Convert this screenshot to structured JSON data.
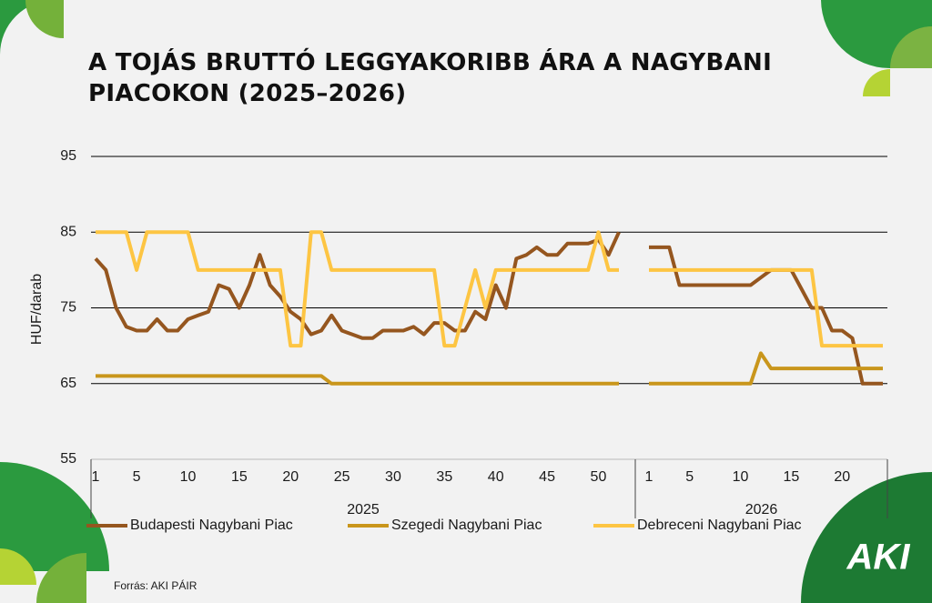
{
  "chart_data": {
    "type": "line",
    "title": "A TOJÁS BRUTTÓ LEGGYAKORIBB ÁRA A NAGYBANI PIACOKON (2025–2026)",
    "y_label": "HUF/darab",
    "groups": [
      {
        "label": "2025",
        "categories": [
          1,
          null,
          null,
          null,
          5,
          null,
          null,
          null,
          null,
          10,
          null,
          null,
          null,
          null,
          15,
          null,
          null,
          null,
          null,
          20,
          null,
          null,
          null,
          null,
          25,
          null,
          null,
          null,
          null,
          30,
          null,
          null,
          null,
          null,
          35,
          null,
          null,
          null,
          null,
          40,
          null,
          null,
          null,
          null,
          45,
          null,
          null,
          null,
          null,
          50,
          null,
          null
        ]
      },
      {
        "label": "2026",
        "categories": [
          1,
          null,
          null,
          null,
          5,
          null,
          null,
          null,
          null,
          10,
          null,
          null,
          null,
          null,
          15,
          null,
          null,
          null,
          null,
          20,
          null,
          null,
          null,
          null
        ]
      }
    ],
    "series": [
      {
        "name": "Budapesti Nagybani Piac",
        "color": "#95561f",
        "values": [
          81.5,
          80,
          75,
          72.5,
          72,
          72,
          73.5,
          72,
          72,
          73.5,
          74,
          74.5,
          78,
          77.5,
          75,
          78,
          82,
          78,
          76.5,
          74.5,
          73.5,
          71.5,
          72,
          74,
          72,
          71.5,
          71,
          71,
          72,
          72,
          72,
          72.5,
          71.5,
          73,
          73,
          72,
          72,
          74.5,
          73.5,
          78,
          75,
          81.5,
          82,
          83,
          82,
          82,
          83.5,
          83.5,
          83.5,
          84,
          82,
          85,
          83,
          83,
          83,
          78,
          78,
          78,
          78,
          78,
          78,
          78,
          78,
          79,
          80,
          80,
          80,
          77.5,
          75,
          75,
          72,
          72,
          71,
          65,
          65,
          65
        ]
      },
      {
        "name": "Szegedi Nagybani Piac",
        "color": "#c9961c",
        "values": [
          66,
          66,
          66,
          66,
          66,
          66,
          66,
          66,
          66,
          66,
          66,
          66,
          66,
          66,
          66,
          66,
          66,
          66,
          66,
          66,
          66,
          66,
          66,
          65,
          65,
          65,
          65,
          65,
          65,
          65,
          65,
          65,
          65,
          65,
          65,
          65,
          65,
          65,
          65,
          65,
          65,
          65,
          65,
          65,
          65,
          65,
          65,
          65,
          65,
          65,
          65,
          65,
          65,
          65,
          65,
          65,
          65,
          65,
          65,
          65,
          65,
          65,
          65,
          69,
          67,
          67,
          67,
          67,
          67,
          67,
          67,
          67,
          67,
          67,
          67,
          67
        ]
      },
      {
        "name": "Debreceni Nagybani Piac",
        "color": "#fdc543",
        "values": [
          85,
          85,
          85,
          85,
          80,
          85,
          85,
          85,
          85,
          85,
          80,
          80,
          80,
          80,
          80,
          80,
          80,
          80,
          80,
          70,
          70,
          85,
          85,
          80,
          80,
          80,
          80,
          80,
          80,
          80,
          80,
          80,
          80,
          80,
          70,
          70,
          75,
          80,
          75,
          80,
          80,
          80,
          80,
          80,
          80,
          80,
          80,
          80,
          80,
          85,
          80,
          80,
          80,
          80,
          80,
          80,
          80,
          80,
          80,
          80,
          80,
          80,
          80,
          80,
          80,
          80,
          80,
          80,
          80,
          70,
          70,
          70,
          70,
          70,
          70,
          70
        ]
      }
    ],
    "ylim": [
      55,
      95
    ],
    "yticks": [
      55,
      65,
      75,
      85,
      95
    ],
    "grid": true,
    "source": "Forrás: AKI PÁIR",
    "logo": "AKI"
  }
}
